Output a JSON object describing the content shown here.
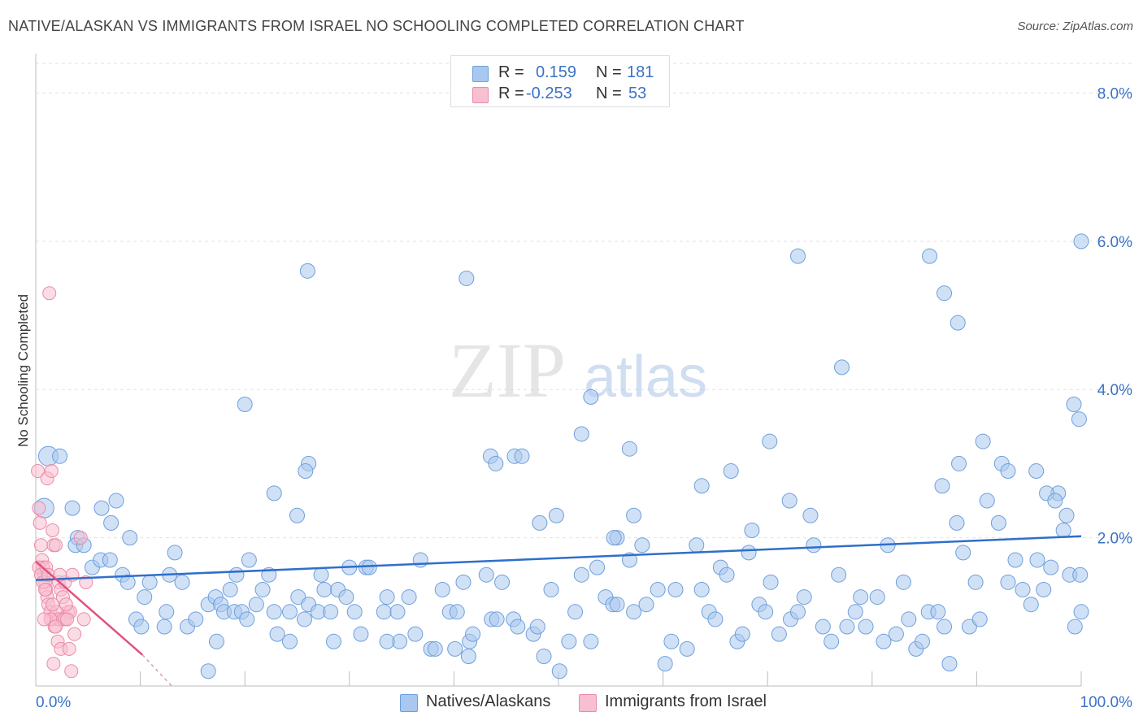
{
  "title": "NATIVE/ALASKAN VS IMMIGRANTS FROM ISRAEL NO SCHOOLING COMPLETED CORRELATION CHART",
  "source": "Source: ZipAtlas.com",
  "watermark": {
    "zip": "ZIP",
    "atlas": "atlas"
  },
  "legend": {
    "rows": [
      {
        "r_label": "R =",
        "r_value": "0.159",
        "n_label": "N =",
        "n_value": "181",
        "color": "#a9c8ef",
        "stroke": "#6f9fdc"
      },
      {
        "r_label": "R =",
        "r_value": "-0.253",
        "n_label": "N =",
        "n_value": "53",
        "color": "#f7bfd0",
        "stroke": "#ec8aaa"
      }
    ]
  },
  "bottom_legend": {
    "natives_label": "Natives/Alaskans",
    "israel_label": "Immigrants from Israel"
  },
  "chart_data": {
    "type": "scatter",
    "title": "NATIVE/ALASKAN VS IMMIGRANTS FROM ISRAEL NO SCHOOLING COMPLETED CORRELATION CHART",
    "xlabel": "",
    "ylabel": "No Schooling Completed",
    "xlim": [
      0,
      100
    ],
    "ylim": [
      0,
      8.4
    ],
    "x_tick_labels": [
      "0.0%",
      "100.0%"
    ],
    "y_ticks": [
      2,
      4,
      6,
      8
    ],
    "y_tick_labels": [
      "2.0%",
      "4.0%",
      "6.0%",
      "8.0%"
    ],
    "grid": true,
    "series": [
      {
        "name": "Natives/Alaskans",
        "color": "#a9c8ef",
        "stroke": "#6f9fdc",
        "trend": {
          "x": [
            0,
            100
          ],
          "y": [
            1.43,
            2.02
          ],
          "color": "#2f6fc9"
        },
        "points": [
          [
            0.8,
            2.4
          ],
          [
            1.2,
            3.1
          ],
          [
            2.3,
            3.1
          ],
          [
            3.5,
            2.4
          ],
          [
            4.0,
            2.0
          ],
          [
            3.8,
            1.9
          ],
          [
            4.6,
            1.9
          ],
          [
            5.4,
            1.6
          ],
          [
            6.2,
            1.7
          ],
          [
            7.1,
            1.7
          ],
          [
            8.3,
            1.5
          ],
          [
            8.8,
            1.4
          ],
          [
            9.6,
            0.9
          ],
          [
            10.1,
            0.8
          ],
          [
            10.4,
            1.2
          ],
          [
            10.9,
            1.4
          ],
          [
            12.3,
            0.8
          ],
          [
            12.5,
            1.0
          ],
          [
            12.8,
            1.5
          ],
          [
            13.3,
            1.8
          ],
          [
            14.0,
            1.4
          ],
          [
            14.5,
            0.8
          ],
          [
            15.3,
            0.9
          ],
          [
            16.5,
            1.1
          ],
          [
            17.2,
            1.2
          ],
          [
            17.3,
            0.6
          ],
          [
            17.7,
            1.1
          ],
          [
            18.0,
            1.0
          ],
          [
            18.6,
            1.3
          ],
          [
            19.0,
            1.0
          ],
          [
            19.2,
            1.5
          ],
          [
            19.7,
            1.0
          ],
          [
            20.2,
            0.9
          ],
          [
            20.4,
            1.7
          ],
          [
            21.1,
            1.1
          ],
          [
            21.7,
            1.3
          ],
          [
            22.3,
            1.5
          ],
          [
            22.8,
            1.0
          ],
          [
            23.1,
            0.7
          ],
          [
            24.3,
            1.0
          ],
          [
            25.1,
            1.2
          ],
          [
            25.7,
            0.9
          ],
          [
            26.1,
            1.1
          ],
          [
            27.0,
            1.0
          ],
          [
            27.6,
            1.3
          ],
          [
            28.2,
            1.0
          ],
          [
            28.5,
            0.6
          ],
          [
            28.9,
            1.3
          ],
          [
            29.7,
            1.2
          ],
          [
            30.5,
            1.0
          ],
          [
            31.1,
            0.7
          ],
          [
            31.6,
            1.6
          ],
          [
            31.9,
            1.6
          ],
          [
            33.3,
            1.0
          ],
          [
            33.6,
            1.2
          ],
          [
            34.6,
            1.0
          ],
          [
            34.8,
            0.6
          ],
          [
            35.7,
            1.2
          ],
          [
            36.3,
            0.7
          ],
          [
            36.8,
            1.7
          ],
          [
            37.8,
            0.5
          ],
          [
            38.2,
            0.5
          ],
          [
            38.9,
            1.3
          ],
          [
            39.6,
            1.0
          ],
          [
            40.1,
            0.5
          ],
          [
            40.3,
            1.0
          ],
          [
            40.9,
            1.4
          ],
          [
            41.4,
            0.4
          ],
          [
            41.5,
            0.6
          ],
          [
            41.8,
            0.7
          ],
          [
            43.1,
            1.5
          ],
          [
            43.6,
            0.9
          ],
          [
            44.1,
            0.9
          ],
          [
            44.6,
            1.4
          ],
          [
            45.7,
            0.9
          ],
          [
            46.1,
            0.8
          ],
          [
            47.6,
            0.7
          ],
          [
            48.0,
            0.8
          ],
          [
            48.6,
            0.4
          ],
          [
            49.3,
            1.3
          ],
          [
            50.1,
            0.2
          ],
          [
            51.0,
            0.6
          ],
          [
            51.6,
            1.0
          ],
          [
            52.2,
            1.5
          ],
          [
            53.1,
            0.6
          ],
          [
            53.7,
            1.6
          ],
          [
            54.5,
            1.2
          ],
          [
            55.2,
            1.1
          ],
          [
            55.6,
            2.0
          ],
          [
            56.8,
            1.7
          ],
          [
            57.2,
            1.0
          ],
          [
            58.0,
            1.9
          ],
          [
            58.4,
            1.1
          ],
          [
            59.5,
            1.3
          ],
          [
            60.2,
            0.3
          ],
          [
            60.8,
            0.6
          ],
          [
            61.2,
            1.3
          ],
          [
            62.3,
            0.5
          ],
          [
            63.2,
            1.9
          ],
          [
            63.7,
            1.3
          ],
          [
            64.4,
            1.0
          ],
          [
            65.0,
            0.9
          ],
          [
            65.5,
            1.6
          ],
          [
            66.1,
            1.5
          ],
          [
            67.1,
            0.6
          ],
          [
            67.6,
            0.7
          ],
          [
            68.2,
            1.8
          ],
          [
            69.2,
            1.1
          ],
          [
            69.8,
            1.0
          ],
          [
            70.3,
            1.4
          ],
          [
            71.1,
            0.7
          ],
          [
            72.2,
            0.9
          ],
          [
            72.9,
            1.0
          ],
          [
            73.5,
            1.2
          ],
          [
            74.4,
            1.9
          ],
          [
            75.3,
            0.8
          ],
          [
            76.1,
            0.6
          ],
          [
            76.8,
            1.5
          ],
          [
            77.6,
            0.8
          ],
          [
            78.4,
            1.0
          ],
          [
            78.9,
            1.2
          ],
          [
            79.4,
            0.8
          ],
          [
            80.5,
            1.2
          ],
          [
            81.1,
            0.6
          ],
          [
            82.3,
            0.7
          ],
          [
            83.0,
            1.4
          ],
          [
            83.5,
            0.9
          ],
          [
            84.2,
            0.5
          ],
          [
            84.8,
            0.6
          ],
          [
            85.4,
            1.0
          ],
          [
            86.3,
            1.0
          ],
          [
            86.9,
            0.8
          ],
          [
            87.4,
            0.3
          ],
          [
            88.1,
            2.2
          ],
          [
            88.7,
            1.8
          ],
          [
            89.3,
            0.8
          ],
          [
            89.9,
            1.4
          ],
          [
            90.3,
            0.9
          ],
          [
            91.0,
            2.5
          ],
          [
            92.1,
            2.2
          ],
          [
            93.0,
            1.4
          ],
          [
            93.7,
            1.7
          ],
          [
            94.4,
            1.3
          ],
          [
            95.2,
            1.1
          ],
          [
            95.8,
            1.7
          ],
          [
            96.4,
            1.3
          ],
          [
            97.1,
            1.6
          ],
          [
            97.8,
            2.6
          ],
          [
            98.3,
            2.1
          ],
          [
            98.9,
            1.5
          ],
          [
            99.4,
            0.8
          ],
          [
            99.9,
            1.5
          ],
          [
            100.0,
            1.0
          ],
          [
            16.5,
            0.2
          ],
          [
            24.3,
            0.6
          ],
          [
            33.6,
            0.6
          ],
          [
            9.0,
            2.0
          ],
          [
            7.7,
            2.5
          ],
          [
            7.2,
            2.2
          ],
          [
            6.3,
            2.4
          ],
          [
            26.1,
            3.0
          ],
          [
            25.0,
            2.3
          ],
          [
            22.8,
            2.6
          ],
          [
            27.3,
            1.5
          ],
          [
            30.0,
            1.6
          ],
          [
            43.5,
            3.1
          ],
          [
            44.0,
            3.0
          ],
          [
            45.8,
            3.1
          ],
          [
            46.5,
            3.1
          ],
          [
            48.2,
            2.2
          ],
          [
            49.8,
            2.3
          ],
          [
            55.3,
            2.0
          ],
          [
            55.6,
            1.1
          ],
          [
            57.2,
            2.3
          ],
          [
            63.7,
            2.7
          ],
          [
            66.5,
            2.9
          ],
          [
            68.5,
            2.1
          ],
          [
            70.2,
            3.3
          ],
          [
            72.1,
            2.5
          ],
          [
            74.1,
            2.3
          ],
          [
            81.5,
            1.9
          ],
          [
            86.7,
            2.7
          ],
          [
            88.3,
            3.0
          ],
          [
            90.6,
            3.3
          ],
          [
            92.4,
            3.0
          ],
          [
            93.0,
            2.9
          ],
          [
            95.7,
            2.9
          ],
          [
            96.7,
            2.6
          ],
          [
            97.5,
            2.5
          ],
          [
            98.6,
            2.3
          ],
          [
            99.3,
            3.8
          ],
          [
            99.8,
            3.6
          ],
          [
            26.0,
            5.6
          ],
          [
            41.2,
            5.5
          ],
          [
            53.1,
            3.9
          ],
          [
            52.2,
            3.4
          ],
          [
            56.8,
            3.2
          ],
          [
            72.9,
            5.8
          ],
          [
            77.1,
            4.3
          ],
          [
            85.5,
            5.8
          ],
          [
            86.9,
            5.3
          ],
          [
            88.2,
            4.9
          ],
          [
            100.0,
            6.0
          ],
          [
            20.0,
            3.8
          ],
          [
            25.8,
            2.9
          ]
        ]
      },
      {
        "name": "Immigrants from Israel",
        "color": "#f7bfd0",
        "stroke": "#ec8aaa",
        "trend": {
          "x": [
            0,
            10.2
          ],
          "y": [
            1.68,
            0.42
          ],
          "color": "#e0517d",
          "dash_to": [
            13,
            0.0
          ]
        },
        "points": [
          [
            0.2,
            2.9
          ],
          [
            0.3,
            2.4
          ],
          [
            0.4,
            2.2
          ],
          [
            0.5,
            1.9
          ],
          [
            0.6,
            1.7
          ],
          [
            0.7,
            1.6
          ],
          [
            0.8,
            1.5
          ],
          [
            0.9,
            1.4
          ],
          [
            1.0,
            1.3
          ],
          [
            1.1,
            1.2
          ],
          [
            0.3,
            1.6
          ],
          [
            0.5,
            1.5
          ],
          [
            0.7,
            1.4
          ],
          [
            0.9,
            1.3
          ],
          [
            1.2,
            1.1
          ],
          [
            1.4,
            1.0
          ],
          [
            1.6,
            0.9
          ],
          [
            1.8,
            0.8
          ],
          [
            2.0,
            1.0
          ],
          [
            2.2,
            0.9
          ],
          [
            1.3,
            5.3
          ],
          [
            1.1,
            2.8
          ],
          [
            1.5,
            2.9
          ],
          [
            1.6,
            2.1
          ],
          [
            1.7,
            1.9
          ],
          [
            1.9,
            1.9
          ],
          [
            2.2,
            1.4
          ],
          [
            2.4,
            1.3
          ],
          [
            2.6,
            1.2
          ],
          [
            2.8,
            1.4
          ],
          [
            3.1,
            1.0
          ],
          [
            3.3,
            1.0
          ],
          [
            3.5,
            1.5
          ],
          [
            3.7,
            0.7
          ],
          [
            4.3,
            2.0
          ],
          [
            4.8,
            1.4
          ],
          [
            4.6,
            0.9
          ],
          [
            2.6,
            0.9
          ],
          [
            2.8,
            0.9
          ],
          [
            3.0,
            0.9
          ],
          [
            1.4,
            0.9
          ],
          [
            1.6,
            1.1
          ],
          [
            1.9,
            0.8
          ],
          [
            2.1,
            0.6
          ],
          [
            2.4,
            0.5
          ],
          [
            3.2,
            0.5
          ],
          [
            3.4,
            0.2
          ],
          [
            1.7,
            0.3
          ],
          [
            2.9,
            1.1
          ],
          [
            0.8,
            0.9
          ],
          [
            1.0,
            1.6
          ],
          [
            1.2,
            1.5
          ],
          [
            2.3,
            1.5
          ]
        ]
      }
    ]
  }
}
